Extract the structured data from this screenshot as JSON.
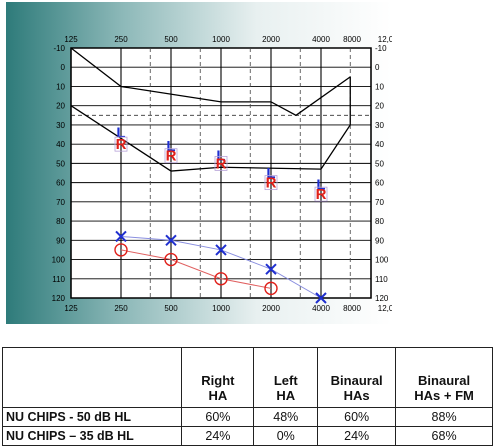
{
  "chart_data": {
    "type": "line",
    "x_ticks": [
      "125",
      "250",
      "500",
      "1000",
      "2000",
      "4000",
      "8000",
      "12,000"
    ],
    "y_ticks": [
      -10,
      0,
      10,
      20,
      30,
      40,
      50,
      60,
      70,
      80,
      90,
      100,
      110,
      120
    ],
    "ylim": [
      -10,
      120
    ],
    "y_inverted": true,
    "grid": true,
    "reference_line_db": 25,
    "speech_banana": {
      "upper": [
        {
          "x": "125",
          "y": -10
        },
        {
          "x": "250",
          "y": 10
        },
        {
          "x": "1000",
          "y": 18
        },
        {
          "x": "2000",
          "y": 18
        },
        {
          "x": "2828",
          "y": 25
        },
        {
          "x": "6000",
          "y": 5
        }
      ],
      "lower": [
        {
          "x": "125",
          "y": 20
        },
        {
          "x": "500",
          "y": 54
        },
        {
          "x": "1000",
          "y": 52
        },
        {
          "x": "4000",
          "y": 53
        },
        {
          "x": "6000",
          "y": 30
        },
        {
          "x": "6000",
          "y": 5
        }
      ]
    },
    "series": [
      {
        "marker": "L",
        "color": "#1f2fd0",
        "points": [
          {
            "x": "250",
            "y": 34
          },
          {
            "x": "500",
            "y": 41
          },
          {
            "x": "1000",
            "y": 46
          },
          {
            "x": "2000",
            "y": 55
          },
          {
            "x": "4000",
            "y": 61
          }
        ]
      },
      {
        "marker": "R",
        "color": "#e0201a",
        "points": [
          {
            "x": "250",
            "y": 40
          },
          {
            "x": "500",
            "y": 46
          },
          {
            "x": "1000",
            "y": 50
          },
          {
            "x": "2000",
            "y": 60
          },
          {
            "x": "4000",
            "y": 66
          }
        ]
      },
      {
        "marker": "X",
        "color": "#1f2fd0",
        "line_color": "#8a8fe0",
        "points": [
          {
            "x": "250",
            "y": 88
          },
          {
            "x": "500",
            "y": 90
          },
          {
            "x": "1000",
            "y": 95
          },
          {
            "x": "2000",
            "y": 105
          },
          {
            "x": "4000",
            "y": 120
          }
        ]
      },
      {
        "marker": "O",
        "color": "#e0201a",
        "line_color": "#e06060",
        "points": [
          {
            "x": "250",
            "y": 95
          },
          {
            "x": "500",
            "y": 100
          },
          {
            "x": "1000",
            "y": 110
          },
          {
            "x": "2000",
            "y": 115
          }
        ]
      }
    ]
  },
  "table": {
    "headers": [
      "",
      "Right\nHA",
      "Left\nHA",
      "Binaural\nHAs",
      "Binaural\nHAs + FM"
    ],
    "rows": [
      {
        "label": "NU CHIPS - 50 dB HL",
        "values": [
          "60%",
          "48%",
          "60%",
          "88%"
        ]
      },
      {
        "label": "NU CHIPS – 35 dB HL",
        "values": [
          "24%",
          "0%",
          "24%",
          "68%"
        ]
      }
    ]
  }
}
